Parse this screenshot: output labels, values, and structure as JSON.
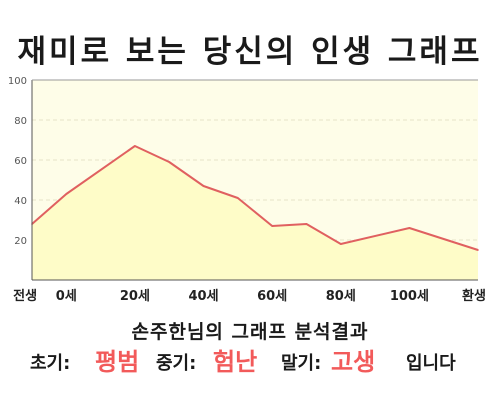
{
  "title": "재미로 보는 당신의 인생 그래프",
  "chart_data": {
    "type": "area",
    "x_categories": [
      "전생",
      "0세",
      "20세",
      "40세",
      "60세",
      "80세",
      "100세",
      "환생"
    ],
    "x": [
      -10,
      0,
      20,
      30,
      40,
      50,
      60,
      70,
      80,
      100,
      120
    ],
    "values": [
      28,
      43,
      67,
      59,
      47,
      41,
      27,
      28,
      18,
      26,
      15
    ],
    "ylim": [
      0,
      100
    ],
    "y_ticks": [
      "20",
      "40",
      "60",
      "80",
      "100"
    ],
    "grid": true,
    "colors": {
      "line": "#e06060",
      "fill": "#fefcc8",
      "plot_bg": "#fefde8",
      "grid": "#e6e4c8"
    }
  },
  "result": {
    "heading": "손주한님의 그래프 분석결과",
    "early_label": "초기:",
    "early_value": "평범",
    "middle_label": "중기:",
    "middle_value": "험난",
    "late_label": "말기:",
    "late_value": "고생",
    "suffix": "입니다",
    "value_color": "#f25a5a"
  }
}
